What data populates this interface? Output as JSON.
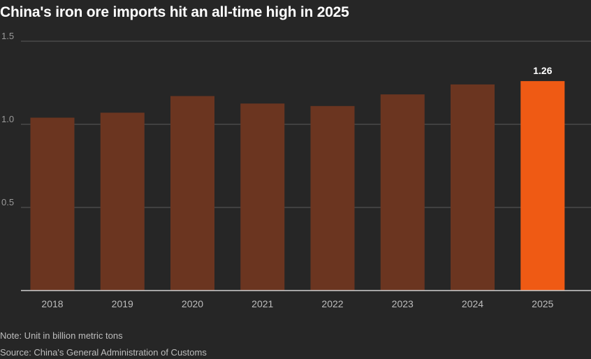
{
  "title": "China's iron ore imports hit an all-time high in 2025",
  "note": "Note: Unit in billion metric tons",
  "source": "Source: China's General Administration of Customs",
  "colors": {
    "bar": "#6b3520",
    "highlight": "#ef5a14",
    "background": "#262626",
    "grid": "#5a5a5a",
    "axis": "#cfcfcf",
    "text": "#bdbdbd"
  },
  "chart_data": {
    "type": "bar",
    "categories": [
      "2018",
      "2019",
      "2020",
      "2021",
      "2022",
      "2023",
      "2024",
      "2025"
    ],
    "values": [
      1.04,
      1.07,
      1.17,
      1.125,
      1.11,
      1.18,
      1.24,
      1.26
    ],
    "highlight": "2025",
    "data_labels": [
      {
        "category": "2025",
        "text": "1.26"
      }
    ],
    "yticks": [
      "0.5",
      "1.0",
      "1.5"
    ],
    "ylim": [
      0,
      1.5
    ],
    "xlabel": "",
    "ylabel": "",
    "grid": true
  }
}
